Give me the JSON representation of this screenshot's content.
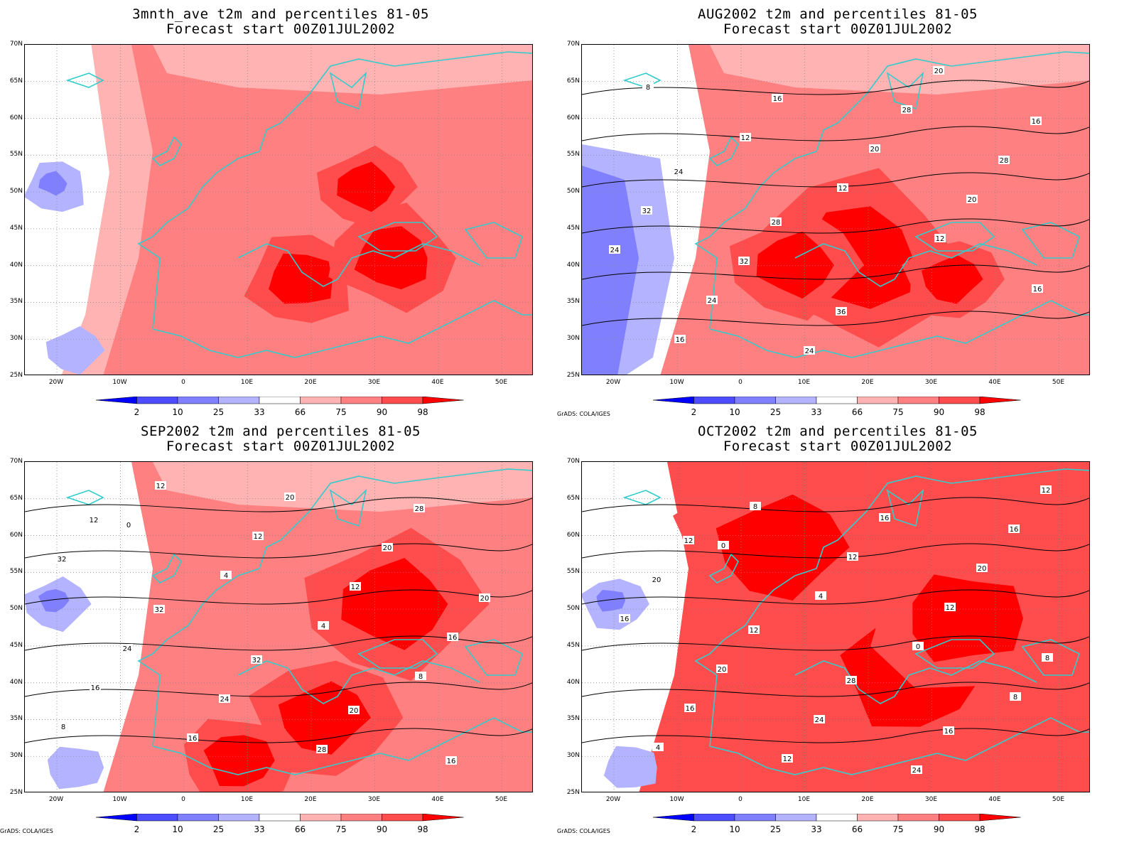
{
  "panels": [
    {
      "title1": "3mnth_ave t2m and percentiles 81-05",
      "title2": "Forecast start 00Z01JUL2002",
      "credit": "",
      "variant": 0,
      "contours": []
    },
    {
      "title1": "AUG2002 t2m and percentiles 81-05",
      "title2": "Forecast start 00Z01JUL2002",
      "credit": "GrADS: COLA/IGES",
      "variant": 1,
      "contours": [
        "8",
        "12",
        "12",
        "12",
        "16",
        "16",
        "16",
        "20",
        "20",
        "24",
        "24",
        "24",
        "28",
        "28",
        "32",
        "32",
        "36",
        "20",
        "16",
        "24",
        "28"
      ]
    },
    {
      "title1": "SEP2002 t2m and percentiles 81-05",
      "title2": "Forecast start 00Z01JUL2002",
      "credit": "GrADS: COLA/IGES",
      "variant": 2,
      "contours": [
        "0",
        "4",
        "4",
        "8",
        "8",
        "12",
        "12",
        "12",
        "16",
        "16",
        "16",
        "20",
        "20",
        "20",
        "24",
        "24",
        "28",
        "28",
        "32",
        "32",
        "32",
        "20",
        "16",
        "12"
      ]
    },
    {
      "title1": "OCT2002 t2m and percentiles 81-05",
      "title2": "Forecast start 00Z01JUL2002",
      "credit": "GrADS: COLA/IGES",
      "variant": 3,
      "contours": [
        "0",
        "4",
        "0",
        "8",
        "4",
        "8",
        "12",
        "12",
        "8",
        "16",
        "12",
        "16",
        "20",
        "16",
        "20",
        "24",
        "24",
        "16",
        "20",
        "12",
        "28",
        "16",
        "12",
        "12"
      ]
    }
  ],
  "lat_labels": [
    "70N",
    "65N",
    "60N",
    "55N",
    "50N",
    "45N",
    "40N",
    "35N",
    "30N",
    "25N"
  ],
  "lon_labels": [
    "20W",
    "10W",
    "0",
    "10E",
    "20E",
    "30E",
    "40E",
    "50E"
  ],
  "colorbar": {
    "labels": [
      "2",
      "10",
      "25",
      "33",
      "66",
      "75",
      "90",
      "98"
    ],
    "colors": [
      "#0000ff",
      "#4d4dff",
      "#8080ff",
      "#b3b3ff",
      "#ffffff",
      "#ffb3b3",
      "#ff8080",
      "#ff4d4d",
      "#ff0000"
    ]
  },
  "colors": {
    "coast": "#33cccc",
    "contour": "#000000",
    "grid": "#888888"
  }
}
